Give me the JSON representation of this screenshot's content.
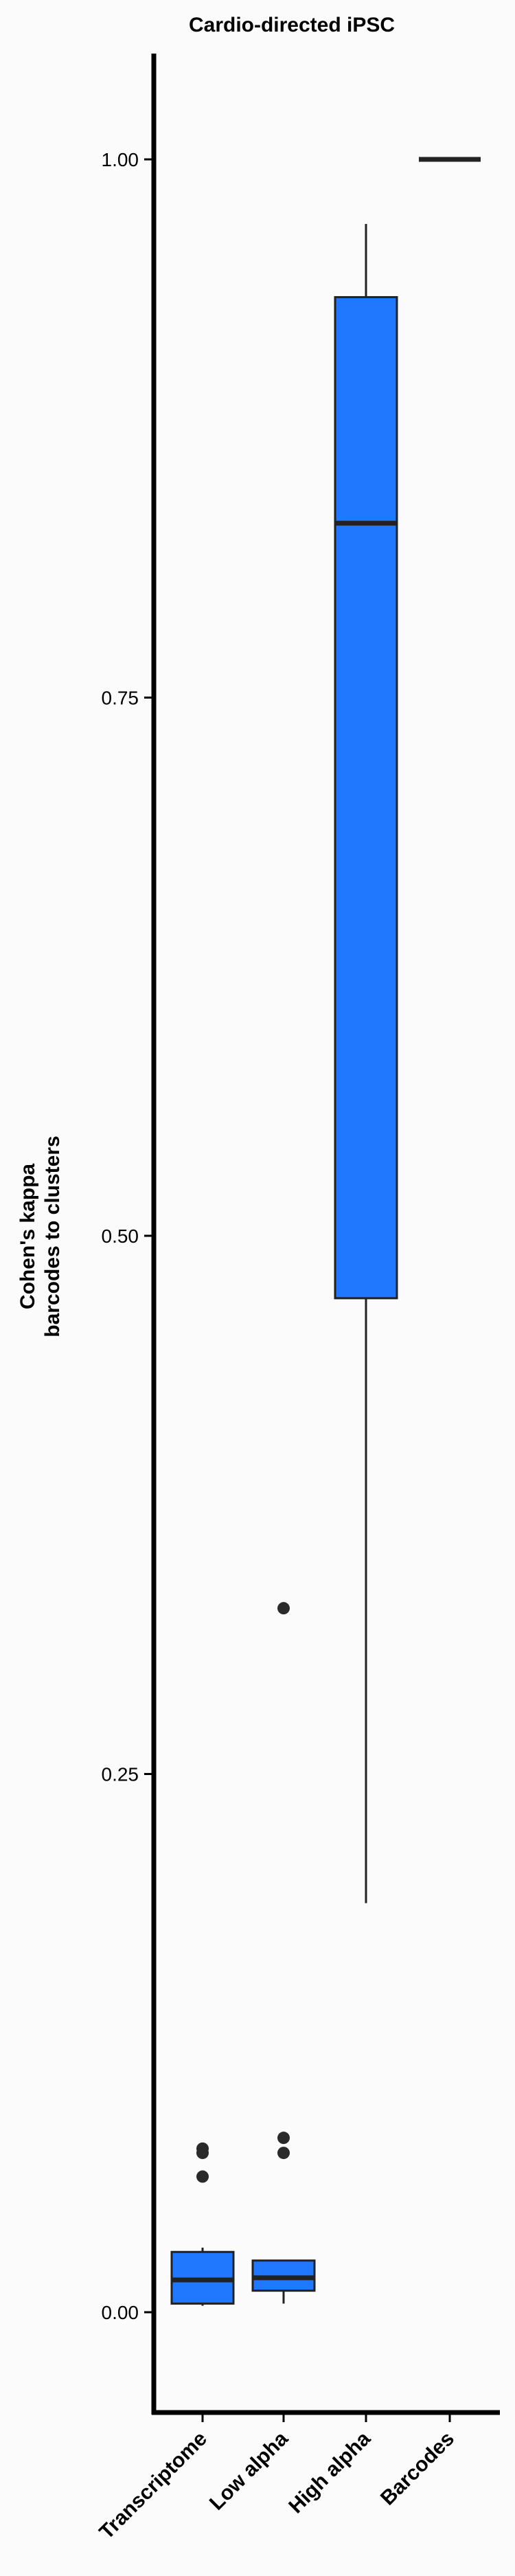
{
  "chart_data": {
    "type": "box",
    "title": "Cardio-directed iPSC",
    "ylabel_lines": [
      "Cohen's kappa",
      "barcodes to clusters"
    ],
    "xlabel": "",
    "categories": [
      "Transcriptome",
      "Low alpha",
      "High alpha",
      "Barcodes"
    ],
    "ylim": [
      -0.045,
      1.05
    ],
    "yticks": [
      0.0,
      0.25,
      0.5,
      0.75,
      1.0
    ],
    "ytick_labels": [
      "0.00",
      "0.25",
      "0.50",
      "0.75",
      "1.00"
    ],
    "fill_color": "#1f78ff",
    "grid": false,
    "legend": "none",
    "boxes": [
      {
        "category": "Transcriptome",
        "whisker_low": 0.003,
        "q1": 0.004,
        "median": 0.015,
        "q3": 0.028,
        "whisker_high": 0.03,
        "outliers": [
          0.063,
          0.074,
          0.076
        ]
      },
      {
        "category": "Low alpha",
        "whisker_low": 0.004,
        "q1": 0.01,
        "median": 0.016,
        "q3": 0.024,
        "whisker_high": 0.024,
        "outliers": [
          0.074,
          0.081,
          0.327
        ]
      },
      {
        "category": "High alpha",
        "whisker_low": 0.19,
        "q1": 0.471,
        "median": 0.831,
        "q3": 0.936,
        "whisker_high": 0.97,
        "outliers": []
      },
      {
        "category": "Barcodes",
        "whisker_low": 1.0,
        "q1": 1.0,
        "median": 1.0,
        "q3": 1.0,
        "whisker_high": 1.0,
        "outliers": []
      }
    ]
  }
}
